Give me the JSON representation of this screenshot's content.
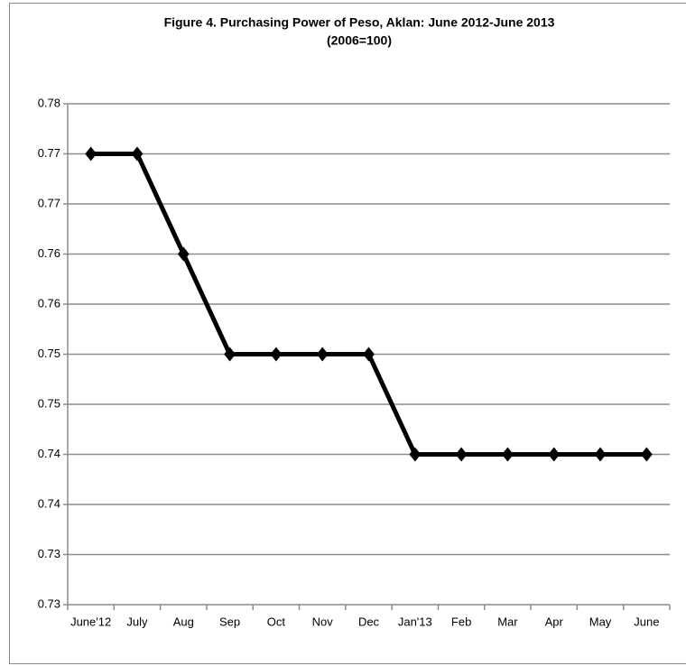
{
  "chart_data": {
    "type": "line",
    "title": "Figure 4. Purchasing Power of Peso, Aklan: June 2012-June 2013",
    "subtitle": "(2006=100)",
    "categories": [
      "June'12",
      "July",
      "Aug",
      "Sep",
      "Oct",
      "Nov",
      "Dec",
      "Jan'13",
      "Feb",
      "Mar",
      "Apr",
      "May",
      "June"
    ],
    "series": [
      {
        "name": "Purchasing Power of Peso",
        "color": "#000000",
        "values": [
          0.77,
          0.77,
          0.76,
          0.75,
          0.75,
          0.75,
          0.75,
          0.74,
          0.74,
          0.74,
          0.74,
          0.74,
          0.74
        ]
      }
    ],
    "ylim": [
      0.725,
      0.775
    ],
    "yticks": [
      {
        "value": 0.725,
        "label": "0.73"
      },
      0.73,
      {
        "value": 0.735,
        "label": "0.74"
      },
      0.74,
      {
        "value": 0.745,
        "label": "0.75"
      },
      0.75,
      {
        "value": 0.755,
        "label": "0.76"
      },
      0.76,
      {
        "value": 0.765,
        "label": "0.77"
      },
      0.77,
      {
        "value": 0.775,
        "label": "0.78"
      }
    ],
    "grid": true
  }
}
